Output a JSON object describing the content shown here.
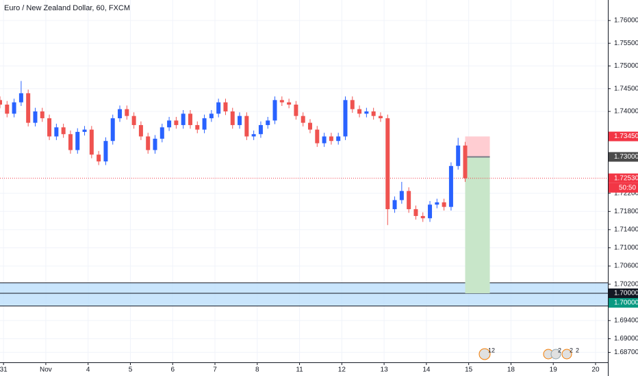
{
  "chart_data": {
    "type": "candlestick",
    "title": "Euro / New Zealand Dollar, 60, FXCM",
    "up_color": "#2962ff",
    "down_color": "#ef5350",
    "grid": true,
    "xlim": [
      -2,
      343
    ],
    "ylim": [
      1.68481,
      1.76451
    ],
    "xticks": [
      {
        "value": 0,
        "label": "31"
      },
      {
        "value": 24,
        "label": "Nov"
      },
      {
        "value": 48,
        "label": "4"
      },
      {
        "value": 72,
        "label": "5"
      },
      {
        "value": 96,
        "label": "6"
      },
      {
        "value": 120,
        "label": "7"
      },
      {
        "value": 144,
        "label": "8"
      },
      {
        "value": 168,
        "label": "11"
      },
      {
        "value": 192,
        "label": "12"
      },
      {
        "value": 216,
        "label": "13"
      },
      {
        "value": 240,
        "label": "14"
      },
      {
        "value": 264,
        "label": "15"
      },
      {
        "value": 288,
        "label": "18"
      },
      {
        "value": 312,
        "label": "19"
      },
      {
        "value": 336,
        "label": "20"
      }
    ],
    "yticks": [
      {
        "value": 1.687,
        "label": "1.68700"
      },
      {
        "value": 1.69,
        "label": "1.69000"
      },
      {
        "value": 1.694,
        "label": "1.69400"
      },
      {
        "value": 1.702,
        "label": "1.70200"
      },
      {
        "value": 1.706,
        "label": "1.70600"
      },
      {
        "value": 1.71,
        "label": "1.71000"
      },
      {
        "value": 1.714,
        "label": "1.71400"
      },
      {
        "value": 1.718,
        "label": "1.71800"
      },
      {
        "value": 1.722,
        "label": "1.72200"
      },
      {
        "value": 1.74,
        "label": "1.74000"
      },
      {
        "value": 1.745,
        "label": "1.74500"
      },
      {
        "value": 1.75,
        "label": "1.75000"
      },
      {
        "value": 1.755,
        "label": "1.75500"
      },
      {
        "value": 1.76,
        "label": "1.76000"
      }
    ],
    "x": [
      -2,
      2,
      6,
      10,
      14,
      18,
      22,
      26,
      30,
      34,
      38,
      42,
      46,
      50,
      54,
      58,
      62,
      66,
      70,
      74,
      78,
      82,
      86,
      90,
      94,
      98,
      102,
      106,
      110,
      114,
      118,
      122,
      126,
      130,
      134,
      138,
      142,
      146,
      150,
      154,
      158,
      162,
      166,
      170,
      174,
      178,
      182,
      186,
      190,
      194,
      198,
      202,
      206,
      210,
      214,
      218,
      222,
      226,
      230,
      234,
      238,
      242,
      246,
      250,
      254,
      258,
      262
    ],
    "candles": [
      [
        1.7425,
        1.7433,
        1.7407,
        1.7415
      ],
      [
        1.7415,
        1.7423,
        1.7387,
        1.7395
      ],
      [
        1.7395,
        1.7428,
        1.7387,
        1.742
      ],
      [
        1.742,
        1.7467,
        1.7412,
        1.744
      ],
      [
        1.744,
        1.7448,
        1.7367,
        1.7375
      ],
      [
        1.7375,
        1.7408,
        1.7367,
        1.74
      ],
      [
        1.74,
        1.7408,
        1.7377,
        1.7385
      ],
      [
        1.7385,
        1.7393,
        1.7337,
        1.7345
      ],
      [
        1.7345,
        1.7373,
        1.7337,
        1.7365
      ],
      [
        1.7365,
        1.7373,
        1.7342,
        1.735
      ],
      [
        1.735,
        1.7358,
        1.7307,
        1.7315
      ],
      [
        1.7315,
        1.7363,
        1.7307,
        1.7355
      ],
      [
        1.7355,
        1.7368,
        1.7347,
        1.736
      ],
      [
        1.736,
        1.7368,
        1.7297,
        1.7305
      ],
      [
        1.7305,
        1.7313,
        1.7282,
        1.729
      ],
      [
        1.729,
        1.7343,
        1.7282,
        1.7335
      ],
      [
        1.7335,
        1.7393,
        1.7327,
        1.7385
      ],
      [
        1.7385,
        1.7413,
        1.7377,
        1.7405
      ],
      [
        1.7405,
        1.7413,
        1.7382,
        1.739
      ],
      [
        1.739,
        1.7398,
        1.7362,
        1.737
      ],
      [
        1.737,
        1.7378,
        1.7337,
        1.7345
      ],
      [
        1.7345,
        1.7353,
        1.7307,
        1.7315
      ],
      [
        1.7315,
        1.7348,
        1.7307,
        1.734
      ],
      [
        1.734,
        1.7373,
        1.7332,
        1.7365
      ],
      [
        1.7365,
        1.7388,
        1.7357,
        1.738
      ],
      [
        1.738,
        1.7388,
        1.7362,
        1.737
      ],
      [
        1.737,
        1.7403,
        1.7362,
        1.7395
      ],
      [
        1.7395,
        1.7403,
        1.7362,
        1.737
      ],
      [
        1.737,
        1.7378,
        1.7352,
        1.736
      ],
      [
        1.736,
        1.7393,
        1.7352,
        1.7385
      ],
      [
        1.7385,
        1.7403,
        1.7377,
        1.7395
      ],
      [
        1.7395,
        1.7428,
        1.7387,
        1.742
      ],
      [
        1.742,
        1.7428,
        1.7392,
        1.74
      ],
      [
        1.74,
        1.7408,
        1.7362,
        1.737
      ],
      [
        1.737,
        1.7398,
        1.7362,
        1.739
      ],
      [
        1.739,
        1.7398,
        1.7337,
        1.7345
      ],
      [
        1.7345,
        1.7358,
        1.7337,
        1.735
      ],
      [
        1.735,
        1.7378,
        1.7342,
        1.737
      ],
      [
        1.737,
        1.7388,
        1.7362,
        1.738
      ],
      [
        1.738,
        1.7433,
        1.7372,
        1.7425
      ],
      [
        1.7425,
        1.7433,
        1.7412,
        1.742
      ],
      [
        1.742,
        1.7428,
        1.7407,
        1.7415
      ],
      [
        1.7415,
        1.7423,
        1.7382,
        1.739
      ],
      [
        1.739,
        1.7398,
        1.7367,
        1.7375
      ],
      [
        1.7375,
        1.7383,
        1.7352,
        1.736
      ],
      [
        1.736,
        1.7368,
        1.7322,
        1.733
      ],
      [
        1.733,
        1.7353,
        1.7322,
        1.7345
      ],
      [
        1.7345,
        1.7353,
        1.7327,
        1.7335
      ],
      [
        1.7335,
        1.7353,
        1.7327,
        1.7345
      ],
      [
        1.7345,
        1.7433,
        1.7337,
        1.7425
      ],
      [
        1.7425,
        1.7433,
        1.7397,
        1.7405
      ],
      [
        1.7405,
        1.7413,
        1.7387,
        1.7395
      ],
      [
        1.7395,
        1.7408,
        1.7387,
        1.74
      ],
      [
        1.74,
        1.7408,
        1.7382,
        1.739
      ],
      [
        1.739,
        1.7398,
        1.7377,
        1.7385
      ],
      [
        1.7385,
        1.7393,
        1.715,
        1.7185
      ],
      [
        1.7185,
        1.7213,
        1.7177,
        1.7205
      ],
      [
        1.7205,
        1.7245,
        1.7197,
        1.7225
      ],
      [
        1.7225,
        1.7233,
        1.7177,
        1.7185
      ],
      [
        1.7185,
        1.7193,
        1.7162,
        1.717
      ],
      [
        1.717,
        1.7178,
        1.7157,
        1.7165
      ],
      [
        1.7165,
        1.7203,
        1.7157,
        1.7195
      ],
      [
        1.7195,
        1.7208,
        1.7187,
        1.72
      ],
      [
        1.72,
        1.7208,
        1.7182,
        1.719
      ],
      [
        1.719,
        1.7288,
        1.7182,
        1.728
      ],
      [
        1.728,
        1.7342,
        1.7272,
        1.7325
      ],
      [
        1.7325,
        1.7333,
        1.7245,
        1.7253
      ]
    ],
    "position": {
      "x_start": 262,
      "x_end": 276,
      "entry": 1.73,
      "stop": 1.7345,
      "target": 1.7,
      "stop_color": "#ffcdd2",
      "target_color": "#c8e6c9"
    },
    "zone": {
      "top": 1.7023,
      "line": 1.7,
      "bottom": 1.6972,
      "color": "#bbdefb"
    },
    "price_labels": [
      {
        "value": 1.7345,
        "label": "1.73450",
        "color": "#f23645"
      },
      {
        "value": 1.73,
        "label": "1.73000",
        "color": "#4a4a4a"
      },
      {
        "value": 1.7253,
        "label": "1.72530",
        "color": "#f23645"
      },
      {
        "value": 1.7,
        "label": "1.70000",
        "color": "#131722"
      },
      {
        "value": 1.7,
        "label": "1.70000",
        "color": "#089981"
      }
    ],
    "countdown": "50:50",
    "events": [
      "12",
      "2",
      "2",
      "2"
    ]
  }
}
